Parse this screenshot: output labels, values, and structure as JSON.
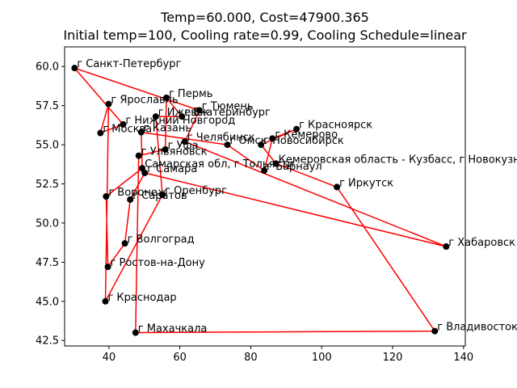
{
  "chart_data": {
    "type": "scatter",
    "title": "Temp=60.000, Cost=47900.365",
    "subtitle": "Initial temp=100, Cooling rate=0.99, Cooling Schedule=linear",
    "xlabel": "",
    "ylabel": "",
    "xlim": [
      27.5,
      140.5
    ],
    "ylim": [
      42.15,
      61.25
    ],
    "xticks": [
      40,
      60,
      80,
      100,
      120,
      140
    ],
    "yticks": [
      42.5,
      45.0,
      47.5,
      50.0,
      52.5,
      55.0,
      57.5,
      60.0
    ],
    "grid": false,
    "legend": "none",
    "colors": {
      "route": "#ff0000",
      "point": "#000000"
    },
    "points": [
      {
        "name": "г Санкт-Петербург",
        "x": 30.3,
        "y": 59.9
      },
      {
        "name": "г Ярославль",
        "x": 39.9,
        "y": 57.6
      },
      {
        "name": "г Пермь",
        "x": 56.2,
        "y": 58.0
      },
      {
        "name": "г Тюмень",
        "x": 65.5,
        "y": 57.2
      },
      {
        "name": "г Ижевск",
        "x": 53.2,
        "y": 56.8
      },
      {
        "name": "г Екатеринбург",
        "x": 60.6,
        "y": 56.8
      },
      {
        "name": "г Нижний Новгород",
        "x": 44.0,
        "y": 56.3
      },
      {
        "name": "г Красноярск",
        "x": 92.9,
        "y": 56.0
      },
      {
        "name": "г Москва",
        "x": 37.6,
        "y": 55.75
      },
      {
        "name": "г Казань",
        "x": 49.1,
        "y": 55.8
      },
      {
        "name": "г Кемерово",
        "x": 86.1,
        "y": 55.4
      },
      {
        "name": "г Челябинск",
        "x": 61.4,
        "y": 55.2
      },
      {
        "name": "г Омск",
        "x": 73.4,
        "y": 55.0
      },
      {
        "name": "г Новосибирск",
        "x": 82.9,
        "y": 55.0
      },
      {
        "name": "г Уфа",
        "x": 55.9,
        "y": 54.7
      },
      {
        "name": "г Ульяновск",
        "x": 48.4,
        "y": 54.3
      },
      {
        "name": "Кемеровская область - Кузбасс, г Новокузнецк",
        "x": 87.1,
        "y": 53.8
      },
      {
        "name": "Самарская обл, г Тольятти",
        "x": 49.4,
        "y": 53.5
      },
      {
        "name": "г Барнаул",
        "x": 83.8,
        "y": 53.35
      },
      {
        "name": "г Самара",
        "x": 50.1,
        "y": 53.2
      },
      {
        "name": "г Иркутск",
        "x": 104.3,
        "y": 52.3
      },
      {
        "name": "г Воронеж",
        "x": 39.2,
        "y": 51.7
      },
      {
        "name": "г Оренбург",
        "x": 55.1,
        "y": 51.8
      },
      {
        "name": "г Саратов",
        "x": 46.0,
        "y": 51.5
      },
      {
        "name": "г Хабаровск",
        "x": 135.1,
        "y": 48.5
      },
      {
        "name": "г Волгоград",
        "x": 44.5,
        "y": 48.7
      },
      {
        "name": "г Ростов-на-Дону",
        "x": 39.7,
        "y": 47.2
      },
      {
        "name": "г Краснодар",
        "x": 39.0,
        "y": 45.0
      },
      {
        "name": "г Махачкала",
        "x": 47.5,
        "y": 43.0
      },
      {
        "name": "г Владивосток",
        "x": 131.9,
        "y": 43.1
      }
    ],
    "route": [
      "г Санкт-Петербург",
      "г Нижний Новгород",
      "г Москва",
      "г Ярославль",
      "г Краснодар",
      "г Оренбург",
      "г Ижевск",
      "г Екатеринбург",
      "г Пермь",
      "г Уфа",
      "г Ульяновск",
      "г Махачкала",
      "г Владивосток",
      "г Иркутск",
      "Кемеровская область - Кузбасс, г Новокузнецк",
      "г Новосибирск",
      "г Красноярск",
      "г Кемерово",
      "г Барнаул",
      "г Омск",
      "г Казань",
      "Самарская обл, г Тольятти",
      "г Воронеж",
      "г Ростов-на-Дону",
      "г Волгоград",
      "г Саратов",
      "г Самара",
      "г Хабаровск",
      "г Челябинск",
      "г Тюмень",
      "г Санкт-Петербург"
    ]
  }
}
